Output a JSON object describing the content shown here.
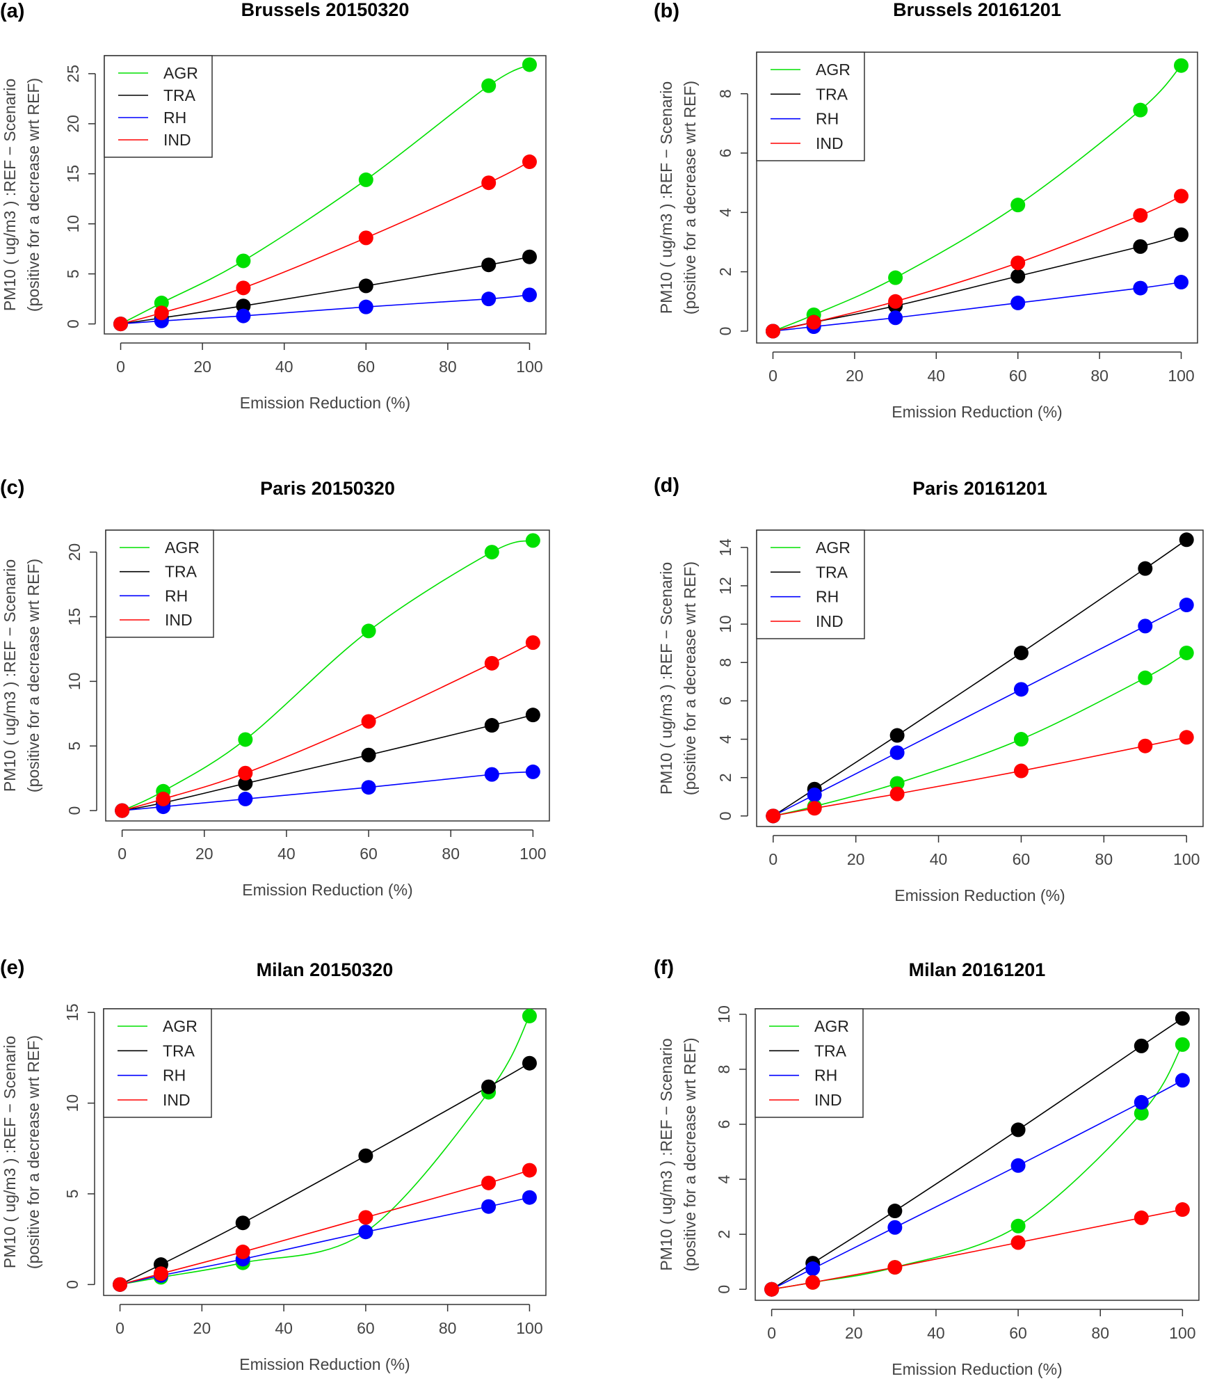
{
  "chart_data": [
    {
      "panel": "(a)",
      "type": "line",
      "title": "Brussels 20150320",
      "xlabel": "Emission Reduction (%)",
      "ylabel": [
        "PM10 ( ug/m3 ) :REF − Scenario",
        "(positive for a decrease wrt REF)"
      ],
      "x": [
        0,
        10,
        30,
        60,
        90,
        100
      ],
      "xticks": [
        0,
        20,
        40,
        60,
        80,
        100
      ],
      "yticks": [
        0,
        5,
        10,
        15,
        20,
        25
      ],
      "xlim": [
        -4,
        104
      ],
      "ylim": [
        -1,
        26.8
      ],
      "legend": [
        "AGR",
        "TRA",
        "RH",
        "IND"
      ],
      "series": [
        {
          "name": "AGR",
          "color": "#00e000",
          "values": [
            0,
            2.1,
            6.3,
            14.4,
            23.8,
            25.9
          ]
        },
        {
          "name": "TRA",
          "color": "#000000",
          "values": [
            0,
            0.6,
            1.8,
            3.8,
            5.9,
            6.7
          ]
        },
        {
          "name": "RH",
          "color": "#0000ff",
          "values": [
            0,
            0.3,
            0.8,
            1.7,
            2.5,
            2.9
          ]
        },
        {
          "name": "IND",
          "color": "#ff0000",
          "values": [
            0,
            1.1,
            3.6,
            8.6,
            14.1,
            16.2
          ]
        }
      ]
    },
    {
      "panel": "(b)",
      "type": "line",
      "title": "Brussels 20161201",
      "xlabel": "Emission Reduction (%)",
      "ylabel": [
        "PM10 ( ug/m3 ) :REF − Scenario",
        "(positive for a decrease wrt REF)"
      ],
      "x": [
        0,
        10,
        30,
        60,
        90,
        100
      ],
      "xticks": [
        0,
        20,
        40,
        60,
        80,
        100
      ],
      "yticks": [
        0,
        2,
        4,
        6,
        8
      ],
      "xlim": [
        -4,
        104
      ],
      "ylim": [
        -0.4,
        9.4
      ],
      "legend": [
        "AGR",
        "TRA",
        "RH",
        "IND"
      ],
      "series": [
        {
          "name": "AGR",
          "color": "#00e000",
          "values": [
            0,
            0.55,
            1.8,
            4.25,
            7.45,
            8.95
          ]
        },
        {
          "name": "TRA",
          "color": "#000000",
          "values": [
            0,
            0.3,
            0.85,
            1.85,
            2.85,
            3.25
          ]
        },
        {
          "name": "RH",
          "color": "#0000ff",
          "values": [
            0,
            0.15,
            0.45,
            0.95,
            1.45,
            1.65
          ]
        },
        {
          "name": "IND",
          "color": "#ff0000",
          "values": [
            0,
            0.3,
            1.0,
            2.3,
            3.9,
            4.55
          ]
        }
      ]
    },
    {
      "panel": "(c)",
      "type": "line",
      "title": "Paris 20150320",
      "xlabel": "Emission Reduction (%)",
      "ylabel": [
        "PM10 ( ug/m3 ) :REF − Scenario",
        "(positive for a decrease wrt REF)"
      ],
      "x": [
        0,
        10,
        30,
        60,
        90,
        100
      ],
      "xticks": [
        0,
        20,
        40,
        60,
        80,
        100
      ],
      "yticks": [
        0,
        5,
        10,
        15,
        20
      ],
      "xlim": [
        -4,
        104
      ],
      "ylim": [
        -0.8,
        21.7
      ],
      "legend": [
        "AGR",
        "TRA",
        "RH",
        "IND"
      ],
      "series": [
        {
          "name": "AGR",
          "color": "#00e000",
          "values": [
            0,
            1.5,
            5.5,
            13.9,
            20.0,
            20.9
          ]
        },
        {
          "name": "TRA",
          "color": "#000000",
          "values": [
            0,
            0.6,
            2.1,
            4.3,
            6.6,
            7.4
          ]
        },
        {
          "name": "RH",
          "color": "#0000ff",
          "values": [
            0,
            0.3,
            0.9,
            1.8,
            2.8,
            3.0
          ]
        },
        {
          "name": "IND",
          "color": "#ff0000",
          "values": [
            0,
            0.9,
            2.9,
            6.9,
            11.4,
            13.0
          ]
        }
      ]
    },
    {
      "panel": "(d)",
      "type": "line",
      "title": "Paris 20161201",
      "xlabel": "Emission Reduction (%)",
      "ylabel": [
        "PM10 ( ug/m3 ) :REF − Scenario",
        "(positive for a decrease wrt REF)"
      ],
      "x": [
        0,
        10,
        30,
        60,
        90,
        100
      ],
      "xticks": [
        0,
        20,
        40,
        60,
        80,
        100
      ],
      "yticks": [
        0,
        2,
        4,
        6,
        8,
        10,
        12,
        14
      ],
      "xlim": [
        -4,
        104
      ],
      "ylim": [
        -0.55,
        14.9
      ],
      "legend": [
        "AGR",
        "TRA",
        "RH",
        "IND"
      ],
      "series": [
        {
          "name": "AGR",
          "color": "#00e000",
          "values": [
            0,
            0.5,
            1.7,
            4.0,
            7.2,
            8.5
          ]
        },
        {
          "name": "TRA",
          "color": "#000000",
          "values": [
            0,
            1.4,
            4.2,
            8.5,
            12.9,
            14.4
          ]
        },
        {
          "name": "RH",
          "color": "#0000ff",
          "values": [
            0,
            1.1,
            3.3,
            6.6,
            9.9,
            11.0
          ]
        },
        {
          "name": "IND",
          "color": "#ff0000",
          "values": [
            0,
            0.4,
            1.15,
            2.35,
            3.65,
            4.1
          ]
        }
      ]
    },
    {
      "panel": "(e)",
      "type": "line",
      "title": "Milan 20150320",
      "xlabel": "Emission Reduction (%)",
      "ylabel": [
        "PM10 ( ug/m3 ) :REF − Scenario",
        "(positive for a decrease wrt REF)"
      ],
      "x": [
        0,
        10,
        30,
        60,
        90,
        100
      ],
      "xticks": [
        0,
        20,
        40,
        60,
        80,
        100
      ],
      "yticks": [
        0,
        5,
        10,
        15
      ],
      "xlim": [
        -4,
        104
      ],
      "ylim": [
        -0.6,
        15.2
      ],
      "legend": [
        "AGR",
        "TRA",
        "RH",
        "IND"
      ],
      "series": [
        {
          "name": "AGR",
          "color": "#00e000",
          "values": [
            0,
            0.4,
            1.2,
            2.9,
            10.6,
            14.8
          ]
        },
        {
          "name": "TRA",
          "color": "#000000",
          "values": [
            0,
            1.1,
            3.4,
            7.1,
            10.9,
            12.2
          ]
        },
        {
          "name": "RH",
          "color": "#0000ff",
          "values": [
            0,
            0.5,
            1.4,
            2.9,
            4.3,
            4.8
          ]
        },
        {
          "name": "IND",
          "color": "#ff0000",
          "values": [
            0,
            0.6,
            1.8,
            3.7,
            5.6,
            6.3
          ]
        }
      ]
    },
    {
      "panel": "(f)",
      "type": "line",
      "title": "Milan 20161201",
      "xlabel": "Emission Reduction (%)",
      "ylabel": [
        "PM10 ( ug/m3 ) :REF − Scenario",
        "(positive for a decrease wrt REF)"
      ],
      "x": [
        0,
        10,
        30,
        60,
        90,
        100
      ],
      "xticks": [
        0,
        20,
        40,
        60,
        80,
        100
      ],
      "yticks": [
        0,
        2,
        4,
        6,
        8,
        10
      ],
      "xlim": [
        -4,
        104
      ],
      "ylim": [
        -0.4,
        10.2
      ],
      "legend": [
        "AGR",
        "TRA",
        "RH",
        "IND"
      ],
      "series": [
        {
          "name": "AGR",
          "color": "#00e000",
          "values": [
            0,
            0.25,
            0.8,
            2.3,
            6.4,
            8.9
          ]
        },
        {
          "name": "TRA",
          "color": "#000000",
          "values": [
            0,
            0.95,
            2.85,
            5.8,
            8.85,
            9.85
          ]
        },
        {
          "name": "RH",
          "color": "#0000ff",
          "values": [
            0,
            0.75,
            2.25,
            4.5,
            6.8,
            7.6
          ]
        },
        {
          "name": "IND",
          "color": "#ff0000",
          "values": [
            0,
            0.25,
            0.8,
            1.7,
            2.6,
            2.9
          ]
        }
      ]
    }
  ]
}
